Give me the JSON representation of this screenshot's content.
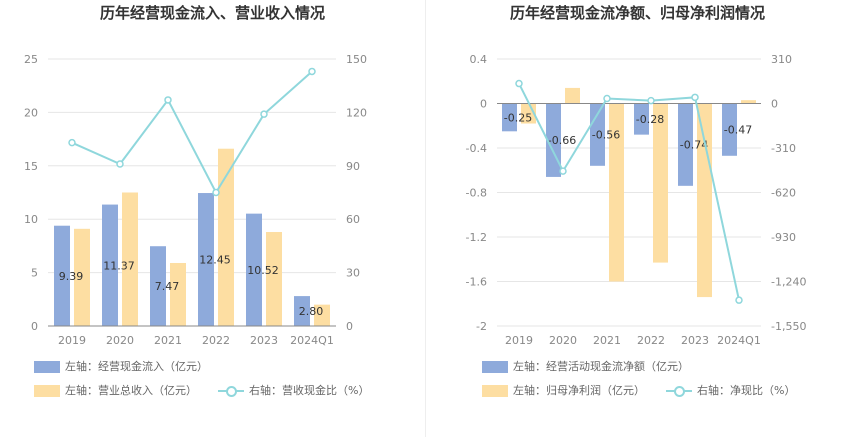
{
  "chart_data": [
    {
      "type": "bar",
      "title": "历年经营现金流入、营业收入情况",
      "categories": [
        "2019",
        "2020",
        "2021",
        "2022",
        "2023",
        "2024Q1"
      ],
      "left_axis": {
        "ylim": [
          0,
          25
        ],
        "ticks": [
          "0",
          "5",
          "10",
          "15",
          "20",
          "25"
        ]
      },
      "right_axis": {
        "ylim": [
          0,
          150
        ],
        "ticks": [
          "0",
          "30",
          "60",
          "90",
          "120",
          "150"
        ]
      },
      "series": [
        {
          "name": "左轴：经营现金流入（亿元）",
          "axis": "left",
          "kind": "bar",
          "color": "#8eaadb",
          "values": [
            9.39,
            11.37,
            7.47,
            12.45,
            10.52,
            2.8
          ],
          "labels": [
            "9.39",
            "11.37",
            "7.47",
            "12.45",
            "10.52",
            "2.80"
          ]
        },
        {
          "name": "左轴：营业总收入（亿元）",
          "axis": "left",
          "kind": "bar",
          "color": "#fddea2",
          "values": [
            9.1,
            12.5,
            5.9,
            16.6,
            8.8,
            2.0
          ]
        },
        {
          "name": "右轴：营收现金比（%）",
          "axis": "right",
          "kind": "line",
          "color": "#8fd7dc",
          "values": [
            103,
            91,
            127,
            75,
            119,
            143
          ]
        }
      ],
      "grid": true,
      "legend": "bottom"
    },
    {
      "type": "bar",
      "title": "历年经营现金流净额、归母净利润情况",
      "categories": [
        "2019",
        "2020",
        "2021",
        "2022",
        "2023",
        "2024Q1"
      ],
      "left_axis": {
        "ylim": [
          -2,
          0.4
        ],
        "ticks": [
          "-2",
          "-1.6",
          "-1.2",
          "-0.8",
          "-0.4",
          "0",
          "0.4"
        ]
      },
      "right_axis": {
        "ylim": [
          -1550,
          310
        ],
        "ticks": [
          "-1,550",
          "-1,240",
          "-930",
          "-620",
          "-310",
          "0",
          "310"
        ]
      },
      "series": [
        {
          "name": "左轴：经营活动现金流净额（亿元）",
          "axis": "left",
          "kind": "bar",
          "color": "#8eaadb",
          "values": [
            -0.25,
            -0.66,
            -0.56,
            -0.28,
            -0.74,
            -0.47
          ],
          "labels": [
            "-0.25",
            "-0.66",
            "-0.56",
            "-0.28",
            "-0.74",
            "-0.47"
          ]
        },
        {
          "name": "左轴：归母净利润（亿元）",
          "axis": "left",
          "kind": "bar",
          "color": "#fddea2",
          "values": [
            -0.18,
            0.14,
            -1.6,
            -1.43,
            -1.74,
            0.03
          ]
        },
        {
          "name": "右轴：净现比（%）",
          "axis": "right",
          "kind": "line",
          "color": "#8fd7dc",
          "values": [
            139,
            -471,
            35,
            20,
            43,
            -1370
          ]
        }
      ],
      "grid": true,
      "legend": "bottom"
    }
  ]
}
